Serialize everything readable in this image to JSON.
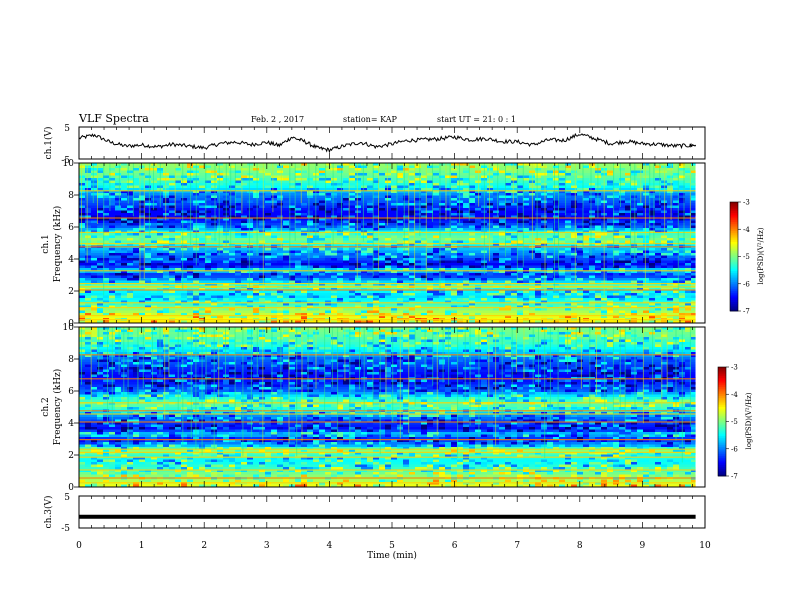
{
  "header": {
    "title": "VLF Spectra",
    "date": "Feb. 2 , 2017",
    "station": "station= KAP",
    "start": "start UT = 21: 0 : 1"
  },
  "chart_data": [
    {
      "type": "line",
      "panel": "ch1-time-series",
      "ylabel": "ch.1(V)",
      "xlim": [
        0,
        10
      ],
      "ylim": [
        -5,
        5
      ],
      "y_ticks": [
        "5",
        "-5"
      ],
      "x_end": 9.85,
      "series": [
        {
          "x": [
            0,
            0.25,
            0.5,
            0.75,
            1.0,
            1.25,
            1.5,
            1.75,
            2.0,
            2.25,
            2.5,
            2.75,
            3.0,
            3.2,
            3.4,
            3.6,
            3.8,
            4.0,
            4.25,
            4.5,
            4.75,
            5.0,
            5.25,
            5.5,
            5.75,
            6.0,
            6.25,
            6.5,
            6.75,
            7.0,
            7.25,
            7.5,
            7.75,
            8.0,
            8.25,
            8.5,
            8.75,
            9.0,
            9.25,
            9.5,
            9.75,
            9.85
          ],
          "y": [
            1.5,
            2.5,
            0.2,
            -1.0,
            -0.6,
            -1.2,
            -0.4,
            -1.0,
            -1.5,
            -0.2,
            0.3,
            -0.5,
            0.2,
            -0.8,
            1.8,
            0.5,
            -1.5,
            -2.2,
            -0.8,
            0.2,
            -1.2,
            -0.3,
            0.8,
            1.0,
            1.3,
            1.9,
            1.0,
            1.4,
            0.5,
            0.4,
            -0.6,
            1.0,
            0.8,
            2.8,
            1.3,
            -0.2,
            0.5,
            -0.2,
            -0.4,
            -0.9,
            -0.8,
            -0.6
          ]
        }
      ]
    },
    {
      "type": "heatmap",
      "panel": "ch1-spectrogram",
      "ylabel": "ch.1",
      "ylabel2": "Frequency (kHz)",
      "xlim": [
        0,
        10
      ],
      "ylim": [
        0,
        10
      ],
      "y_ticks": [
        0,
        2,
        4,
        6,
        8,
        10
      ],
      "x_end": 9.85,
      "colorbar": {
        "label": "log(PSD)(V²/Hz)",
        "range": [
          -7,
          -3
        ],
        "ticks": [
          "-3",
          "-4",
          "-5",
          "-6",
          "-7"
        ]
      },
      "freq_profile": {
        "kHz": [
          0,
          0.4,
          0.8,
          1.2,
          1.6,
          2.0,
          2.3,
          2.6,
          3.0,
          3.3,
          3.6,
          4.0,
          4.4,
          4.8,
          5.2,
          5.6,
          6.0,
          6.5,
          7.0,
          7.5,
          8.0,
          8.5,
          9.0,
          9.5,
          10
        ],
        "log_psd": [
          -4.4,
          -4.6,
          -4.9,
          -5.3,
          -5.6,
          -5.5,
          -4.9,
          -5.7,
          -6.4,
          -5.5,
          -6.6,
          -6.2,
          -5.9,
          -5.6,
          -5.0,
          -5.3,
          -6.1,
          -6.5,
          -6.5,
          -6.2,
          -6.0,
          -5.5,
          -5.2,
          -5.0,
          -4.9
        ]
      },
      "lines_kHz": [
        0.25,
        0.5,
        1.0,
        1.3,
        2.1,
        2.3,
        2.5,
        3.3,
        4.8,
        5.0,
        5.7,
        6.6,
        8.3
      ]
    },
    {
      "type": "heatmap",
      "panel": "ch2-spectrogram",
      "ylabel": "ch.2",
      "ylabel2": "Frequency (kHz)",
      "xlim": [
        0,
        10
      ],
      "ylim": [
        0,
        10
      ],
      "y_ticks": [
        0,
        2,
        4,
        6,
        8,
        10
      ],
      "x_end": 9.85,
      "colorbar": {
        "label": "log(PSD)(V²/Hz)",
        "range": [
          -7,
          -3
        ],
        "ticks": [
          "-3",
          "-4",
          "-5",
          "-6",
          "-7"
        ]
      },
      "freq_profile": {
        "kHz": [
          0,
          0.4,
          0.8,
          1.2,
          1.6,
          2.0,
          2.3,
          2.6,
          3.0,
          3.3,
          3.6,
          4.0,
          4.4,
          4.8,
          5.2,
          5.6,
          6.0,
          6.5,
          7.0,
          7.5,
          8.0,
          8.5,
          9.0,
          9.5,
          10
        ],
        "log_psd": [
          -4.5,
          -4.8,
          -5.0,
          -5.3,
          -5.5,
          -5.3,
          -4.9,
          -5.8,
          -6.4,
          -5.6,
          -6.5,
          -6.3,
          -6.0,
          -5.4,
          -5.1,
          -5.4,
          -6.1,
          -6.4,
          -6.5,
          -6.3,
          -6.1,
          -5.6,
          -5.3,
          -5.1,
          -5.0
        ]
      },
      "lines_kHz": [
        0.3,
        0.6,
        1.1,
        1.9,
        2.2,
        2.4,
        3.0,
        4.1,
        4.6,
        4.8,
        5.3,
        6.8,
        8.3
      ]
    },
    {
      "type": "line",
      "panel": "ch3-time-series",
      "ylabel": "ch.3(V)",
      "xlim": [
        0,
        10
      ],
      "ylim": [
        -5,
        5
      ],
      "y_ticks": [
        "5",
        "-5"
      ],
      "x_end": 9.85,
      "series": [
        {
          "x": [
            0,
            9.85
          ],
          "y": [
            -1.5,
            -1.5
          ]
        }
      ]
    }
  ],
  "x_axis": {
    "label": "Time (min)",
    "ticks": [
      "0",
      "1",
      "2",
      "3",
      "4",
      "5",
      "6",
      "7",
      "8",
      "9",
      "10"
    ]
  }
}
